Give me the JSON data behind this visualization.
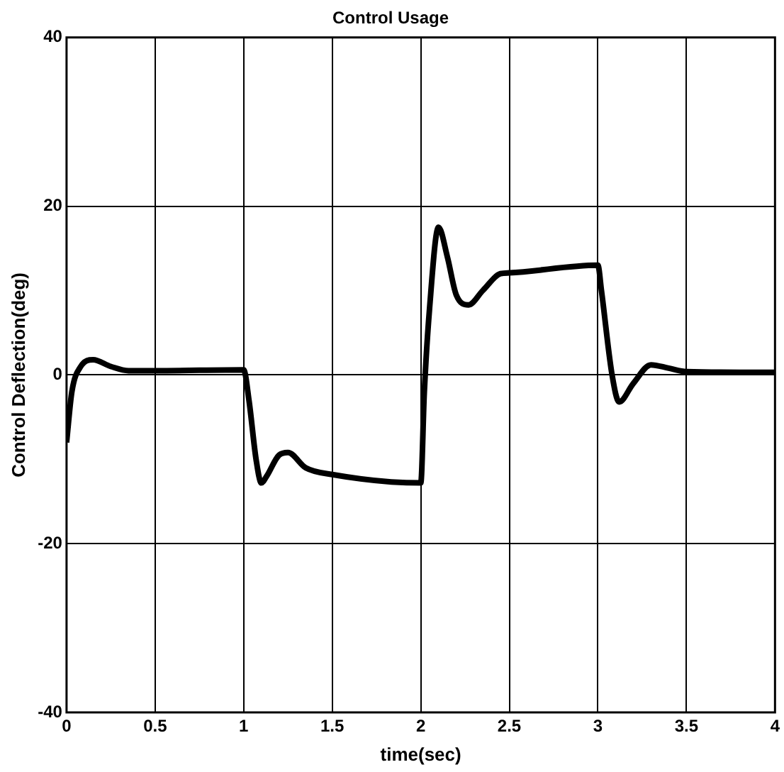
{
  "chart_data": {
    "type": "line",
    "title": "Control Usage",
    "xlabel": "time(sec)",
    "ylabel": "Control Deflection(deg)",
    "x": [
      0,
      0.03,
      0.08,
      0.15,
      0.25,
      0.35,
      0.5,
      1.0,
      1.03,
      1.07,
      1.1,
      1.13,
      1.2,
      1.25,
      1.35,
      1.5,
      2.0,
      2.02,
      2.05,
      2.1,
      2.15,
      2.2,
      2.27,
      2.35,
      2.45,
      2.5,
      3.0,
      3.02,
      3.08,
      3.12,
      3.2,
      3.3,
      3.4,
      3.5,
      4.0
    ],
    "series": [
      {
        "color": "#000000",
        "values": [
          -8,
          -2,
          1,
          1.8,
          1,
          0.5,
          0.5,
          0.6,
          -3,
          -10,
          -12.8,
          -12,
          -9.5,
          -9.2,
          -11,
          -11.8,
          -12.8,
          -2,
          8,
          17.5,
          14,
          9.5,
          8.3,
          10,
          12,
          12.1,
          13,
          10,
          0,
          -3.2,
          -1,
          1.2,
          0.8,
          0.4,
          0.3
        ]
      }
    ],
    "xlim": [
      0,
      4
    ],
    "xticks": [
      0,
      0.5,
      1,
      1.5,
      2,
      2.5,
      3,
      3.5,
      4
    ],
    "ylim": [
      -40,
      40
    ],
    "yticks": [
      -40,
      -20,
      0,
      20,
      40
    ],
    "grid": true,
    "legend": false,
    "marker": "none",
    "line_style": "solid"
  }
}
